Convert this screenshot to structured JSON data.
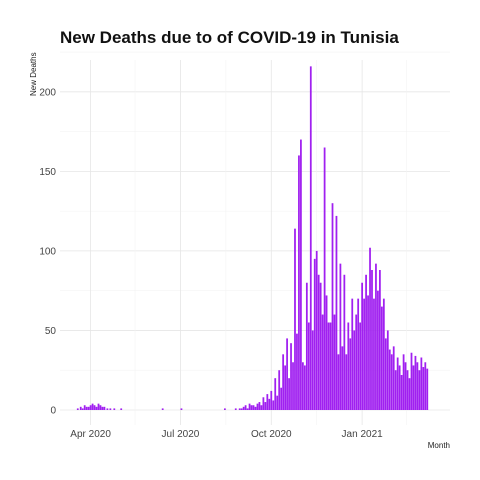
{
  "chart_data": {
    "type": "bar",
    "title": "New Deaths due to of COVID-19 in Tunisia",
    "xlabel": "Month",
    "ylabel": "New Deaths",
    "x_ticks": [
      "Apr 2020",
      "Jul 2020",
      "Oct 2020",
      "Jan 2021"
    ],
    "y_ticks": [
      0,
      50,
      100,
      150,
      200
    ],
    "ylim": [
      0,
      220
    ],
    "xlim": [
      "2020-03-01",
      "2021-03-31"
    ],
    "grid": true,
    "bar_color": "#A020F0",
    "x_dates": [
      "2020-03-19",
      "2020-03-22",
      "2020-03-24",
      "2020-03-26",
      "2020-03-28",
      "2020-03-30",
      "2020-04-01",
      "2020-04-03",
      "2020-04-05",
      "2020-04-07",
      "2020-04-09",
      "2020-04-11",
      "2020-04-13",
      "2020-04-15",
      "2020-04-18",
      "2020-04-21",
      "2020-04-25",
      "2020-05-02",
      "2020-06-13",
      "2020-07-02",
      "2020-08-15",
      "2020-08-26",
      "2020-08-30",
      "2020-09-01",
      "2020-09-03",
      "2020-09-05",
      "2020-09-07",
      "2020-09-09",
      "2020-09-11",
      "2020-09-13",
      "2020-09-15",
      "2020-09-17",
      "2020-09-19",
      "2020-09-21",
      "2020-09-23",
      "2020-09-25",
      "2020-09-27",
      "2020-09-29",
      "2020-10-01",
      "2020-10-03",
      "2020-10-05",
      "2020-10-07",
      "2020-10-09",
      "2020-10-11",
      "2020-10-13",
      "2020-10-15",
      "2020-10-17",
      "2020-10-19",
      "2020-10-21",
      "2020-10-23",
      "2020-10-25",
      "2020-10-27",
      "2020-10-29",
      "2020-10-31",
      "2020-11-02",
      "2020-11-04",
      "2020-11-06",
      "2020-11-08",
      "2020-11-10",
      "2020-11-12",
      "2020-11-14",
      "2020-11-16",
      "2020-11-18",
      "2020-11-20",
      "2020-11-22",
      "2020-11-24",
      "2020-11-26",
      "2020-11-28",
      "2020-11-30",
      "2020-12-02",
      "2020-12-04",
      "2020-12-06",
      "2020-12-08",
      "2020-12-10",
      "2020-12-12",
      "2020-12-14",
      "2020-12-16",
      "2020-12-18",
      "2020-12-20",
      "2020-12-22",
      "2020-12-24",
      "2020-12-26",
      "2020-12-28",
      "2020-12-30",
      "2021-01-01",
      "2021-01-03",
      "2021-01-05",
      "2021-01-07",
      "2021-01-09",
      "2021-01-11",
      "2021-01-13",
      "2021-01-15",
      "2021-01-17",
      "2021-01-19",
      "2021-01-21",
      "2021-01-23",
      "2021-01-25",
      "2021-01-27",
      "2021-01-29",
      "2021-01-31",
      "2021-02-02",
      "2021-02-04",
      "2021-02-06",
      "2021-02-08",
      "2021-02-10",
      "2021-02-12",
      "2021-02-14",
      "2021-02-16",
      "2021-02-18",
      "2021-02-20",
      "2021-02-22",
      "2021-02-24",
      "2021-02-26",
      "2021-02-28",
      "2021-03-02",
      "2021-03-04",
      "2021-03-06",
      "2021-03-08"
    ],
    "values": [
      1,
      2,
      1,
      3,
      2,
      2,
      3,
      4,
      3,
      2,
      4,
      3,
      2,
      2,
      1,
      1,
      1,
      1,
      1,
      1,
      1,
      1,
      1,
      1,
      2,
      3,
      1,
      4,
      3,
      3,
      2,
      4,
      5,
      3,
      8,
      5,
      10,
      7,
      12,
      6,
      20,
      9,
      25,
      14,
      35,
      28,
      45,
      20,
      42,
      30,
      114,
      48,
      160,
      170,
      30,
      28,
      80,
      55,
      216,
      50,
      95,
      100,
      85,
      80,
      60,
      165,
      72,
      55,
      55,
      130,
      60,
      122,
      35,
      92,
      40,
      85,
      35,
      55,
      45,
      70,
      50,
      60,
      70,
      55,
      80,
      70,
      85,
      72,
      102,
      88,
      70,
      92,
      75,
      88,
      65,
      70,
      45,
      50,
      38,
      35,
      40,
      25,
      33,
      28,
      22,
      35,
      30,
      25,
      20,
      36,
      28,
      34,
      30,
      25,
      33,
      27,
      30,
      26
    ]
  }
}
